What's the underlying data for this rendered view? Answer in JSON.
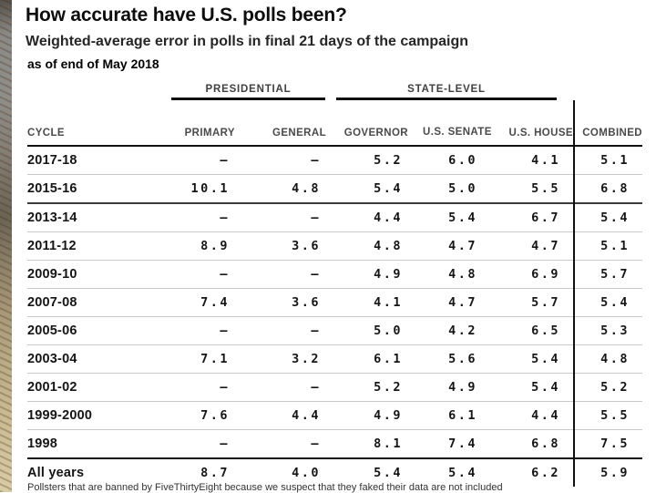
{
  "page": {
    "title": "How accurate have U.S. polls been?",
    "subtitle": "Weighted-average error in polls in final 21 days of the campaign",
    "annotation": "as of end of May 2018",
    "footnote": "Pollsters that are banned by FiveThirtyEight because we suspect that they faked their data are not included"
  },
  "chart_data": {
    "type": "table",
    "title": "How accurate have U.S. polls been?",
    "subtitle": "Weighted-average error in polls in final 21 days of the campaign",
    "column_groups": [
      {
        "label": "PRESIDENTIAL",
        "columns": [
          "PRIMARY",
          "GENERAL"
        ]
      },
      {
        "label": "STATE-LEVEL",
        "columns": [
          "GOVERNOR",
          "U.S. SENATE",
          "U.S. HOUSE"
        ]
      }
    ],
    "columns": [
      "CYCLE",
      "PRIMARY",
      "GENERAL",
      "GOVERNOR",
      "U.S. SENATE",
      "U.S. HOUSE",
      "COMBINED"
    ],
    "missing_marker": "–",
    "rows": [
      {
        "cycle": "2017-18",
        "values": [
          "–",
          "–",
          "5.2",
          "6.0",
          "4.1",
          "5.1"
        ]
      },
      {
        "cycle": "2015-16",
        "values": [
          "10.1",
          "4.8",
          "5.4",
          "5.0",
          "5.5",
          "6.8"
        ]
      },
      {
        "cycle": "2013-14",
        "section_break": true,
        "values": [
          "–",
          "–",
          "4.4",
          "5.4",
          "6.7",
          "5.4"
        ]
      },
      {
        "cycle": "2011-12",
        "values": [
          "8.9",
          "3.6",
          "4.8",
          "4.7",
          "4.7",
          "5.1"
        ]
      },
      {
        "cycle": "2009-10",
        "values": [
          "–",
          "–",
          "4.9",
          "4.8",
          "6.9",
          "5.7"
        ]
      },
      {
        "cycle": "2007-08",
        "values": [
          "7.4",
          "3.6",
          "4.1",
          "4.7",
          "5.7",
          "5.4"
        ]
      },
      {
        "cycle": "2005-06",
        "values": [
          "–",
          "–",
          "5.0",
          "4.2",
          "6.5",
          "5.3"
        ]
      },
      {
        "cycle": "2003-04",
        "values": [
          "7.1",
          "3.2",
          "6.1",
          "5.6",
          "5.4",
          "4.8"
        ]
      },
      {
        "cycle": "2001-02",
        "values": [
          "–",
          "–",
          "5.2",
          "4.9",
          "5.4",
          "5.2"
        ]
      },
      {
        "cycle": "1999-2000",
        "values": [
          "7.6",
          "4.4",
          "4.9",
          "6.1",
          "4.4",
          "5.5"
        ]
      },
      {
        "cycle": "1998",
        "values": [
          "–",
          "–",
          "8.1",
          "7.4",
          "6.8",
          "7.5"
        ]
      },
      {
        "cycle": "All years",
        "total": true,
        "values": [
          "8.7",
          "4.0",
          "5.4",
          "5.4",
          "6.2",
          "5.9"
        ]
      }
    ],
    "colors": {
      "rule_heavy": "#101010",
      "rule_light": "#c9c9c9",
      "header_text": "#4a4a4a",
      "body_text": "#151515"
    }
  }
}
